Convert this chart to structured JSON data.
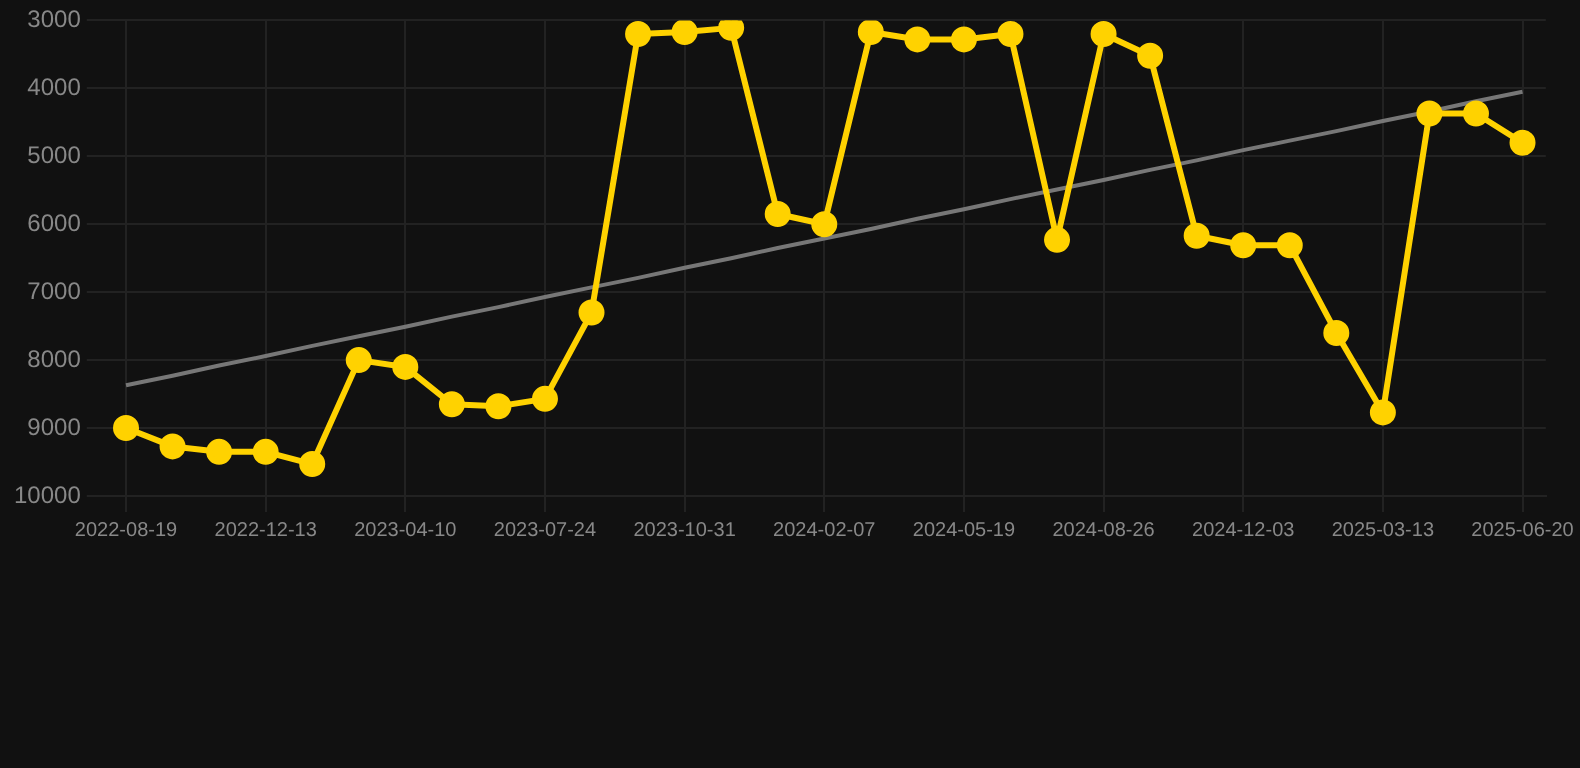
{
  "chart_data": {
    "type": "line",
    "categories": [
      "2022-08-19",
      null,
      null,
      "2022-12-13",
      null,
      null,
      "2023-04-10",
      null,
      null,
      "2023-07-24",
      null,
      null,
      "2023-10-31",
      null,
      null,
      "2024-02-07",
      null,
      null,
      "2024-05-19",
      null,
      null,
      "2024-08-26",
      null,
      null,
      "2024-12-03",
      null,
      null,
      "2025-03-13",
      null,
      null,
      "2025-06-20"
    ],
    "series": [
      {
        "type": "line",
        "color": "#ffd200",
        "marker": "circle",
        "values": [
          9000,
          9270,
          9350,
          9350,
          9530,
          8000,
          8100,
          8650,
          8680,
          8570,
          7300,
          3200,
          3170,
          3110,
          5850,
          6000,
          3170,
          3280,
          3280,
          3200,
          6230,
          3200,
          3520,
          6170,
          6310,
          6310,
          7600,
          8770,
          4370,
          4370,
          4800
        ]
      },
      {
        "type": "line",
        "color": "#777777",
        "marker": "none",
        "values": [
          8370,
          8230,
          8080,
          7940,
          7790,
          7650,
          7510,
          7360,
          7220,
          7070,
          6930,
          6790,
          6640,
          6500,
          6350,
          6210,
          6070,
          5920,
          5780,
          5630,
          5490,
          5350,
          5200,
          5060,
          4910,
          4770,
          4630,
          4480,
          4340,
          4190,
          4050
        ]
      }
    ],
    "ylim": [
      10000,
      3000
    ],
    "yticks": [
      3000,
      4000,
      5000,
      6000,
      7000,
      8000,
      9000,
      10000
    ],
    "grid": true,
    "legend": false
  }
}
